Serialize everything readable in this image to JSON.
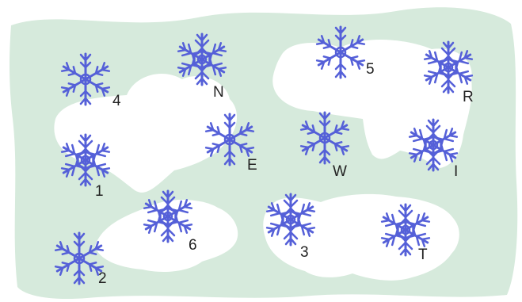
{
  "colors": {
    "field": "#d6eadc",
    "cloud": "#ffffff",
    "snowflake": "#5560d8",
    "label": "#222222"
  },
  "snowflakes": [
    {
      "label": "4",
      "style": "simple"
    },
    {
      "label": "N",
      "style": "ornate"
    },
    {
      "label": "5",
      "style": "simple"
    },
    {
      "label": "R",
      "style": "ornate"
    },
    {
      "label": "1",
      "style": "ornate"
    },
    {
      "label": "E",
      "style": "simple"
    },
    {
      "label": "W",
      "style": "simple"
    },
    {
      "label": "I",
      "style": "ornate"
    },
    {
      "label": "6",
      "style": "ornate"
    },
    {
      "label": "3",
      "style": "ornate"
    },
    {
      "label": "T",
      "style": "ornate"
    },
    {
      "label": "2",
      "style": "simple"
    }
  ]
}
